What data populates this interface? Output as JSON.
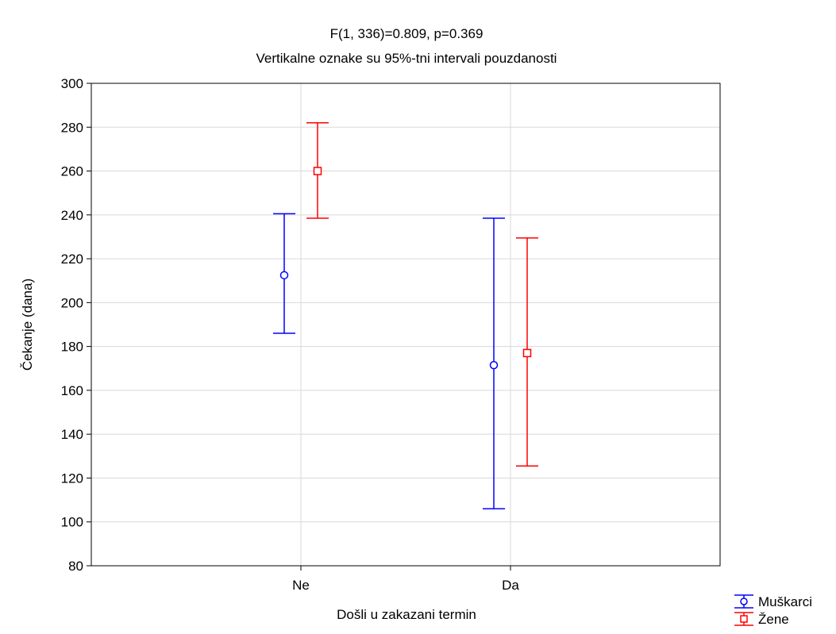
{
  "chart_data": {
    "type": "error-bar",
    "title": "F(1, 336)=0.809, p=0.369",
    "subtitle": "Vertikalne oznake su 95%-tni intervali pouzdanosti",
    "xlabel": "Došli u zakazani termin",
    "ylabel": "Čekanje (dana)",
    "categories": [
      "Ne",
      "Da"
    ],
    "ylim": [
      80,
      300
    ],
    "yticks": [
      80,
      100,
      120,
      140,
      160,
      180,
      200,
      220,
      240,
      260,
      280,
      300
    ],
    "grid": true,
    "legend_position": "bottom-right",
    "series": [
      {
        "name": "Muškarci",
        "color": "#0000ff",
        "marker": "circle",
        "means": [
          212.5,
          171.5
        ],
        "lower": [
          186,
          106
        ],
        "upper": [
          240.5,
          238.5
        ]
      },
      {
        "name": "Žene",
        "color": "#ff0000",
        "marker": "square",
        "means": [
          260,
          177
        ],
        "lower": [
          238.5,
          125.5
        ],
        "upper": [
          282,
          229.5
        ]
      }
    ]
  }
}
